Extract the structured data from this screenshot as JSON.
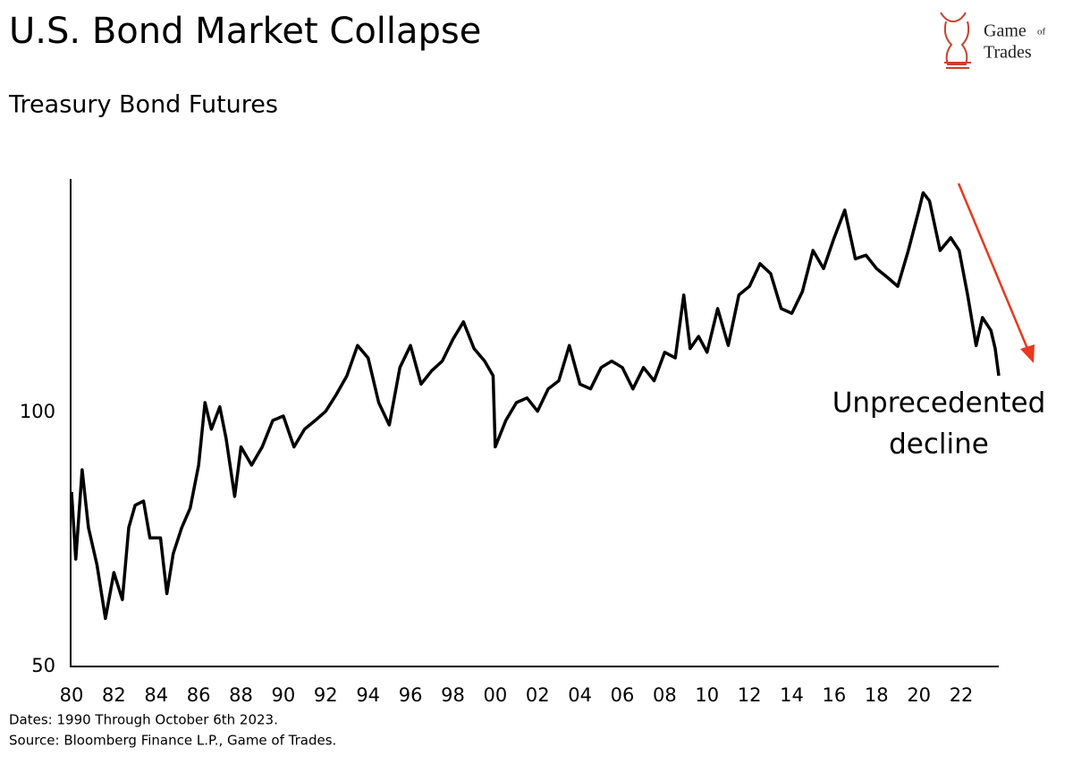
{
  "chart_data": {
    "type": "line",
    "title": "U.S. Bond Market Collapse",
    "subtitle": "Treasury Bond Futures",
    "logo": {
      "first": "Game",
      "middle": "of",
      "last": "Trades"
    },
    "annotation_lines": [
      "Unprecedented",
      "decline"
    ],
    "annotation_color": "#e8391d",
    "notes": [
      "Dates: 1990 Through October 6th 2023.",
      "Source: Bloomberg Finance L.P., Game of Trades."
    ],
    "yscale": "log",
    "ylim": [
      50,
      189
    ],
    "yticks": [
      50,
      100
    ],
    "xlim": [
      1980,
      2023.77
    ],
    "xticks": [
      {
        "value": 1980,
        "label": "80"
      },
      {
        "value": 1982,
        "label": "82"
      },
      {
        "value": 1984,
        "label": "84"
      },
      {
        "value": 1986,
        "label": "86"
      },
      {
        "value": 1988,
        "label": "88"
      },
      {
        "value": 1990,
        "label": "90"
      },
      {
        "value": 1992,
        "label": "92"
      },
      {
        "value": 1994,
        "label": "94"
      },
      {
        "value": 1996,
        "label": "96"
      },
      {
        "value": 1998,
        "label": "98"
      },
      {
        "value": 2000,
        "label": "00"
      },
      {
        "value": 2002,
        "label": "02"
      },
      {
        "value": 2004,
        "label": "04"
      },
      {
        "value": 2006,
        "label": "06"
      },
      {
        "value": 2008,
        "label": "08"
      },
      {
        "value": 2010,
        "label": "10"
      },
      {
        "value": 2012,
        "label": "12"
      },
      {
        "value": 2014,
        "label": "14"
      },
      {
        "value": 2016,
        "label": "16"
      },
      {
        "value": 2018,
        "label": "18"
      },
      {
        "value": 2020,
        "label": "20"
      },
      {
        "value": 2022,
        "label": "22"
      }
    ],
    "grid": false,
    "x": [
      1980.0,
      1980.2,
      1980.5,
      1980.8,
      1981.2,
      1981.6,
      1982.0,
      1982.4,
      1982.7,
      1983.0,
      1983.4,
      1983.7,
      1984.2,
      1984.5,
      1984.8,
      1985.2,
      1985.6,
      1986.0,
      1986.3,
      1986.6,
      1987.0,
      1987.3,
      1987.7,
      1988.0,
      1988.5,
      1989.0,
      1989.5,
      1990.0,
      1990.5,
      1991.0,
      1991.5,
      1992.0,
      1992.5,
      1993.0,
      1993.5,
      1994.0,
      1994.5,
      1995.0,
      1995.5,
      1996.0,
      1996.5,
      1997.0,
      1997.5,
      1998.0,
      1998.5,
      1999.0,
      1999.5,
      1999.9,
      2000.0,
      2000.5,
      2001.0,
      2001.5,
      2002.0,
      2002.5,
      2003.0,
      2003.5,
      2004.0,
      2004.5,
      2005.0,
      2005.5,
      2006.0,
      2006.5,
      2007.0,
      2007.5,
      2008.0,
      2008.5,
      2008.9,
      2009.2,
      2009.6,
      2010.0,
      2010.5,
      2011.0,
      2011.5,
      2012.0,
      2012.5,
      2013.0,
      2013.5,
      2014.0,
      2014.5,
      2015.0,
      2015.5,
      2016.0,
      2016.5,
      2017.0,
      2017.5,
      2018.0,
      2018.5,
      2019.0,
      2019.5,
      2020.0,
      2020.2,
      2020.5,
      2021.0,
      2021.5,
      2021.9,
      2022.3,
      2022.7,
      2023.0,
      2023.4,
      2023.6,
      2023.77
    ],
    "series": [
      {
        "name": "Treasury Bond Futures",
        "color": "#000000",
        "values": [
          80.5,
          67,
          85.5,
          73,
          66,
          57,
          64.6,
          60,
          73,
          77.6,
          78.5,
          71,
          71,
          61,
          68,
          73,
          77,
          86.6,
          102.7,
          95.5,
          101.5,
          93,
          79.5,
          91,
          86.6,
          91,
          97.8,
          99,
          91,
          95.5,
          97.8,
          100.3,
          105,
          110.5,
          120,
          116,
          102.7,
          96.6,
          113,
          120,
          108,
          112,
          115,
          122,
          128,
          119,
          115,
          110.5,
          91,
          97.8,
          102.7,
          104,
          100.3,
          106.6,
          109,
          120,
          108,
          106.6,
          113,
          115,
          113,
          106.6,
          113,
          109,
          117.8,
          116,
          137.7,
          119,
          123,
          117.8,
          132.7,
          120,
          137.7,
          141,
          150,
          146,
          132.7,
          131,
          139,
          155.5,
          148,
          161,
          173.6,
          152,
          153.5,
          148,
          144.6,
          141,
          155.5,
          173.6,
          182,
          178,
          155.5,
          161,
          155.5,
          137.7,
          120,
          129.5,
          125,
          119,
          110.5
        ]
      }
    ]
  }
}
